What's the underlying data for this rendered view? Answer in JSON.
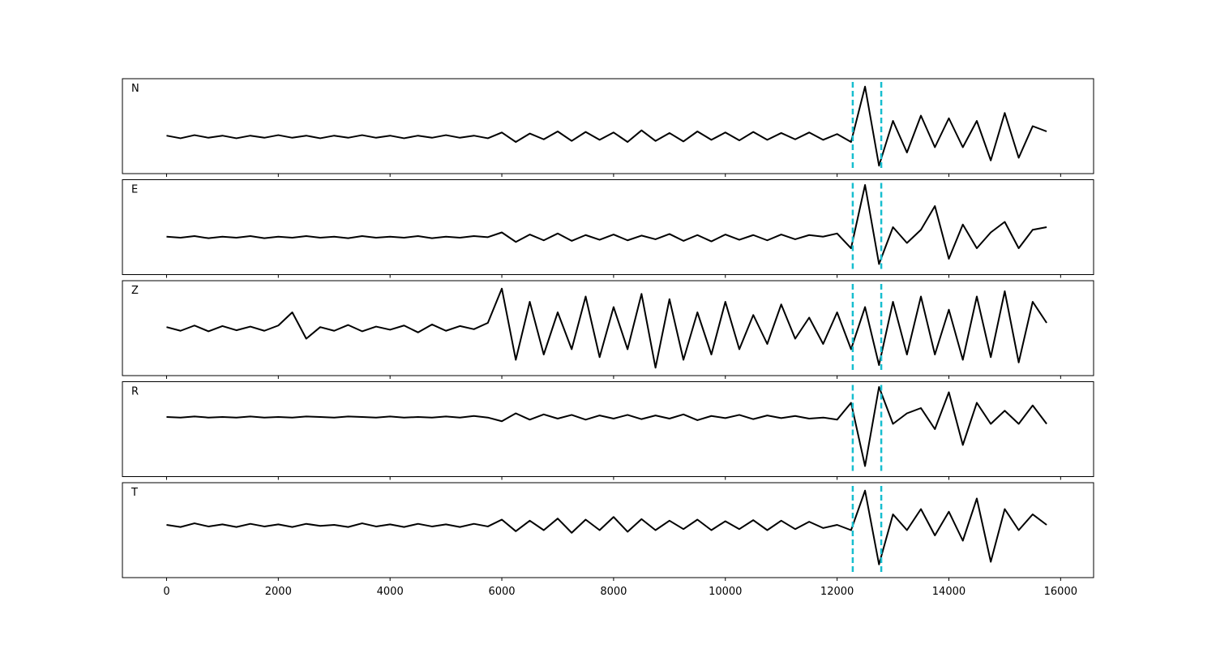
{
  "chart_data": {
    "type": "line",
    "layout": "stacked",
    "x": [
      0,
      250,
      500,
      750,
      1000,
      1250,
      1500,
      1750,
      2000,
      2250,
      2500,
      2750,
      3000,
      3250,
      3500,
      3750,
      4000,
      4250,
      4500,
      4750,
      5000,
      5250,
      5500,
      5750,
      6000,
      6250,
      6500,
      6750,
      7000,
      7250,
      7500,
      7750,
      8000,
      8250,
      8500,
      8750,
      9000,
      9250,
      9500,
      9750,
      10000,
      10250,
      10500,
      10750,
      11000,
      11250,
      11500,
      11750,
      12000,
      12250,
      12500,
      12750,
      13000,
      13250,
      13500,
      13750,
      14000,
      14250,
      14500,
      14750,
      15000,
      15250,
      15500,
      15750
    ],
    "series": [
      {
        "name": "N",
        "color": "#000000",
        "values": [
          0.02,
          -0.03,
          0.03,
          -0.02,
          0.02,
          -0.03,
          0.02,
          -0.02,
          0.03,
          -0.02,
          0.02,
          -0.03,
          0.02,
          -0.02,
          0.03,
          -0.02,
          0.02,
          -0.03,
          0.02,
          -0.02,
          0.03,
          -0.02,
          0.02,
          -0.03,
          0.08,
          -0.1,
          0.06,
          -0.05,
          0.1,
          -0.08,
          0.09,
          -0.06,
          0.08,
          -0.1,
          0.12,
          -0.08,
          0.07,
          -0.09,
          0.1,
          -0.06,
          0.08,
          -0.07,
          0.09,
          -0.06,
          0.07,
          -0.05,
          0.08,
          -0.06,
          0.05,
          -0.1,
          0.95,
          -0.55,
          0.3,
          -0.3,
          0.4,
          -0.2,
          0.35,
          -0.2,
          0.3,
          -0.45,
          0.45,
          -0.4,
          0.2,
          0.1
        ]
      },
      {
        "name": "E",
        "color": "#000000",
        "values": [
          0.02,
          0,
          0.03,
          -0.01,
          0.02,
          0,
          0.03,
          -0.01,
          0.02,
          0,
          0.03,
          0,
          0.02,
          -0.01,
          0.03,
          0,
          0.02,
          0,
          0.03,
          -0.01,
          0.02,
          0,
          0.03,
          0.01,
          0.1,
          -0.08,
          0.06,
          -0.05,
          0.08,
          -0.06,
          0.05,
          -0.04,
          0.06,
          -0.05,
          0.04,
          -0.03,
          0.07,
          -0.06,
          0.05,
          -0.07,
          0.06,
          -0.04,
          0.05,
          -0.05,
          0.06,
          -0.03,
          0.05,
          0.02,
          0.08,
          -0.2,
          1.0,
          -0.5,
          0.2,
          -0.1,
          0.15,
          0.6,
          -0.4,
          0.25,
          -0.2,
          0.1,
          0.3,
          -0.2,
          0.15,
          0.2
        ]
      },
      {
        "name": "Z",
        "color": "#000000",
        "values": [
          0.22,
          0.15,
          0.25,
          0.14,
          0.24,
          0.16,
          0.23,
          0.15,
          0.25,
          0.5,
          0.0,
          0.22,
          0.15,
          0.26,
          0.14,
          0.23,
          0.17,
          0.25,
          0.12,
          0.27,
          0.15,
          0.24,
          0.18,
          0.3,
          0.95,
          -0.4,
          0.7,
          -0.3,
          0.5,
          -0.2,
          0.8,
          -0.35,
          0.6,
          -0.2,
          0.85,
          -0.55,
          0.75,
          -0.4,
          0.5,
          -0.3,
          0.7,
          -0.2,
          0.45,
          -0.1,
          0.65,
          0.0,
          0.4,
          -0.1,
          0.5,
          -0.2,
          0.6,
          -0.5,
          0.7,
          -0.3,
          0.8,
          -0.3,
          0.55,
          -0.4,
          0.8,
          -0.35,
          0.9,
          -0.45,
          0.7,
          0.3
        ]
      },
      {
        "name": "R",
        "color": "#000000",
        "values": [
          0.43,
          0.42,
          0.44,
          0.42,
          0.43,
          0.42,
          0.44,
          0.42,
          0.43,
          0.42,
          0.44,
          0.43,
          0.42,
          0.44,
          0.43,
          0.42,
          0.44,
          0.42,
          0.43,
          0.42,
          0.44,
          0.42,
          0.45,
          0.42,
          0.35,
          0.5,
          0.38,
          0.48,
          0.4,
          0.47,
          0.38,
          0.46,
          0.4,
          0.47,
          0.39,
          0.46,
          0.4,
          0.48,
          0.37,
          0.45,
          0.41,
          0.47,
          0.39,
          0.46,
          0.41,
          0.45,
          0.4,
          0.42,
          0.38,
          0.7,
          -0.5,
          1.0,
          0.3,
          0.5,
          0.6,
          0.2,
          0.9,
          -0.1,
          0.7,
          0.3,
          0.55,
          0.3,
          0.65,
          0.3
        ]
      },
      {
        "name": "T",
        "color": "#000000",
        "values": [
          0.3,
          0.26,
          0.33,
          0.27,
          0.31,
          0.26,
          0.32,
          0.27,
          0.31,
          0.26,
          0.32,
          0.28,
          0.3,
          0.26,
          0.33,
          0.27,
          0.31,
          0.26,
          0.32,
          0.27,
          0.31,
          0.26,
          0.32,
          0.27,
          0.4,
          0.18,
          0.38,
          0.2,
          0.42,
          0.15,
          0.4,
          0.2,
          0.45,
          0.17,
          0.41,
          0.2,
          0.38,
          0.22,
          0.4,
          0.2,
          0.37,
          0.22,
          0.39,
          0.2,
          0.38,
          0.22,
          0.36,
          0.24,
          0.3,
          0.2,
          0.95,
          -0.45,
          0.5,
          0.2,
          0.6,
          0.1,
          0.55,
          0.0,
          0.8,
          -0.4,
          0.6,
          0.2,
          0.5,
          0.3
        ]
      }
    ],
    "xlim": [
      -790,
      16590
    ],
    "xticks": [
      0,
      2000,
      4000,
      6000,
      8000,
      10000,
      12000,
      14000,
      16000
    ],
    "ylim": [
      -0.7,
      1.1
    ],
    "vlines": [
      12280,
      12790
    ],
    "vline_color": "#17becf",
    "vline_style": "dashed"
  }
}
